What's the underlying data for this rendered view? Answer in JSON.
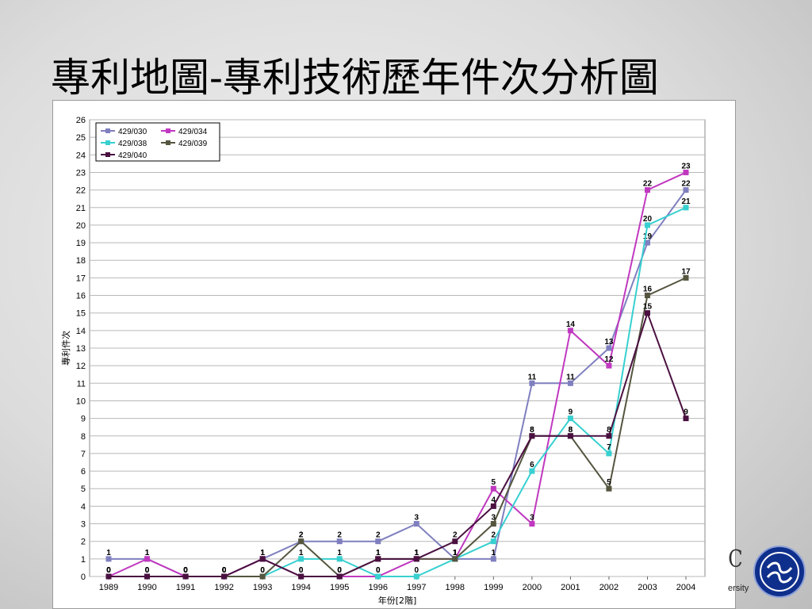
{
  "slide": {
    "title": "專利地圖-專利技術歷年件次分析圖",
    "logo_fragment": "C",
    "university_fragment": "ersity"
  },
  "chart_data": {
    "type": "line",
    "title": "",
    "xlabel": "年份[2階]",
    "ylabel": "專利件次",
    "ylim": [
      0,
      26
    ],
    "grid": true,
    "legend_position": "top-left",
    "categories": [
      "1989",
      "1990",
      "1991",
      "1992",
      "1993",
      "1994",
      "1995",
      "1996",
      "1997",
      "1998",
      "1999",
      "2000",
      "2001",
      "2002",
      "2003",
      "2004"
    ],
    "series": [
      {
        "name": "429/030",
        "color": "#7f7fbf",
        "values": [
          1,
          1,
          0,
          0,
          1,
          2,
          2,
          2,
          3,
          1,
          1,
          11,
          11,
          13,
          19,
          22
        ]
      },
      {
        "name": "429/034",
        "color": "#c038c0",
        "values": [
          0,
          1,
          0,
          0,
          1,
          0,
          0,
          0,
          1,
          1,
          5,
          3,
          14,
          12,
          22,
          23
        ]
      },
      {
        "name": "429/038",
        "color": "#38d0d0",
        "values": [
          0,
          0,
          0,
          0,
          0,
          1,
          1,
          0,
          0,
          1,
          2,
          6,
          9,
          7,
          20,
          21
        ]
      },
      {
        "name": "429/039",
        "color": "#555540",
        "values": [
          0,
          0,
          0,
          0,
          0,
          2,
          0,
          1,
          1,
          1,
          3,
          8,
          8,
          5,
          16,
          17
        ]
      },
      {
        "name": "429/040",
        "color": "#4a1040",
        "values": [
          0,
          0,
          0,
          0,
          1,
          0,
          0,
          1,
          1,
          2,
          4,
          8,
          8,
          8,
          15,
          9
        ]
      }
    ]
  }
}
